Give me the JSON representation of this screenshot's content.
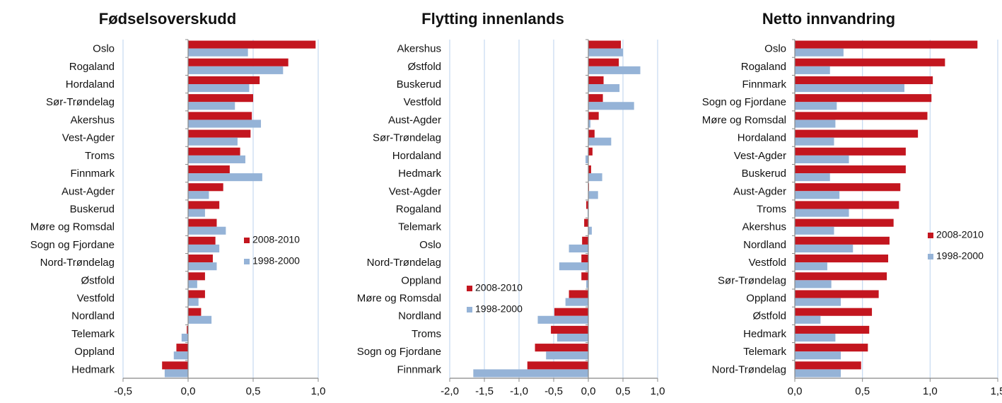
{
  "chart_data": [
    {
      "type": "bar",
      "orientation": "horizontal",
      "title": "Fødselsoverskudd",
      "categories": [
        "Oslo",
        "Rogaland",
        "Hordaland",
        "Sør-Trøndelag",
        "Akershus",
        "Vest-Agder",
        "Troms",
        "Finnmark",
        "Aust-Agder",
        "Buskerud",
        "Møre og Romsdal",
        "Sogn og Fjordane",
        "Nord-Trøndelag",
        "Østfold",
        "Vestfold",
        "Nordland",
        "Telemark",
        "Oppland",
        "Hedmark"
      ],
      "series": [
        {
          "name": "2008-2010",
          "color": "#c3161f",
          "values": [
            0.98,
            0.77,
            0.55,
            0.5,
            0.49,
            0.48,
            0.4,
            0.32,
            0.27,
            0.24,
            0.22,
            0.21,
            0.19,
            0.13,
            0.13,
            0.1,
            -0.01,
            -0.09,
            -0.2
          ]
        },
        {
          "name": "1998-2000",
          "color": "#95b3d7",
          "values": [
            0.46,
            0.73,
            0.47,
            0.36,
            0.56,
            0.38,
            0.44,
            0.57,
            0.16,
            0.13,
            0.29,
            0.24,
            0.22,
            0.07,
            0.08,
            0.18,
            -0.05,
            -0.11,
            -0.18
          ]
        }
      ],
      "xlim": [
        -0.5,
        1.0
      ],
      "xticks": [
        {
          "value": -0.5,
          "label": "-0,5"
        },
        {
          "value": 0,
          "label": "0,0"
        },
        {
          "value": 0.5,
          "label": "0,5"
        },
        {
          "value": 1.0,
          "label": "1,0"
        }
      ],
      "grid": true
    },
    {
      "type": "bar",
      "orientation": "horizontal",
      "title": "Flytting innenlands",
      "categories": [
        "Akershus",
        "Østfold",
        "Buskerud",
        "Vestfold",
        "Aust-Agder",
        "Sør-Trøndelag",
        "Hordaland",
        "Hedmark",
        "Vest-Agder",
        "Rogaland",
        "Telemark",
        "Oslo",
        "Nord-Trøndelag",
        "Oppland",
        "Møre og Romsdal",
        "Nordland",
        "Troms",
        "Sogn og Fjordane",
        "Finnmark"
      ],
      "series": [
        {
          "name": "2008-2010",
          "color": "#c3161f",
          "values": [
            0.47,
            0.44,
            0.22,
            0.21,
            0.15,
            0.09,
            0.06,
            0.04,
            0.01,
            -0.03,
            -0.06,
            -0.09,
            -0.1,
            -0.1,
            -0.28,
            -0.49,
            -0.54,
            -0.77,
            -0.88
          ]
        },
        {
          "name": "1998-2000",
          "color": "#95b3d7",
          "values": [
            0.5,
            0.75,
            0.45,
            0.66,
            0.03,
            0.33,
            -0.04,
            0.2,
            0.14,
            -0.01,
            0.05,
            -0.28,
            -0.42,
            -0.03,
            -0.33,
            -0.73,
            -0.45,
            -0.61,
            -1.66
          ]
        }
      ],
      "xlim": [
        -2.0,
        1.0
      ],
      "xticks": [
        {
          "value": -2.0,
          "label": "-2,0"
        },
        {
          "value": -1.5,
          "label": "-1,5"
        },
        {
          "value": -1.0,
          "label": "-1,0"
        },
        {
          "value": -0.5,
          "label": "-0,5"
        },
        {
          "value": 0,
          "label": "0,0"
        },
        {
          "value": 0.5,
          "label": "0,5"
        },
        {
          "value": 1.0,
          "label": "1,0"
        }
      ],
      "grid": true
    },
    {
      "type": "bar",
      "orientation": "horizontal",
      "title": "Netto innvandring",
      "categories": [
        "Oslo",
        "Rogaland",
        "Finnmark",
        "Sogn og Fjordane",
        "Møre og Romsdal",
        "Hordaland",
        "Vest-Agder",
        "Buskerud",
        "Aust-Agder",
        "Troms",
        "Akershus",
        "Nordland",
        "Vestfold",
        "Sør-Trøndelag",
        "Oppland",
        "Østfold",
        "Hedmark",
        "Telemark",
        "Nord-Trøndelag"
      ],
      "series": [
        {
          "name": "2008-2010",
          "color": "#c3161f",
          "values": [
            1.35,
            1.11,
            1.02,
            1.01,
            0.98,
            0.91,
            0.82,
            0.82,
            0.78,
            0.77,
            0.73,
            0.7,
            0.69,
            0.68,
            0.62,
            0.57,
            0.55,
            0.54,
            0.49
          ]
        },
        {
          "name": "1998-2000",
          "color": "#95b3d7",
          "values": [
            0.36,
            0.26,
            0.81,
            0.31,
            0.3,
            0.29,
            0.4,
            0.26,
            0.33,
            0.4,
            0.29,
            0.43,
            0.24,
            0.27,
            0.34,
            0.19,
            0.3,
            0.34,
            0.34
          ]
        }
      ],
      "xlim": [
        0,
        1.5
      ],
      "xticks": [
        {
          "value": 0,
          "label": "0,0"
        },
        {
          "value": 0.5,
          "label": "0,5"
        },
        {
          "value": 1.0,
          "label": "1,0"
        },
        {
          "value": 1.5,
          "label": "1,5"
        }
      ],
      "grid": true
    }
  ]
}
